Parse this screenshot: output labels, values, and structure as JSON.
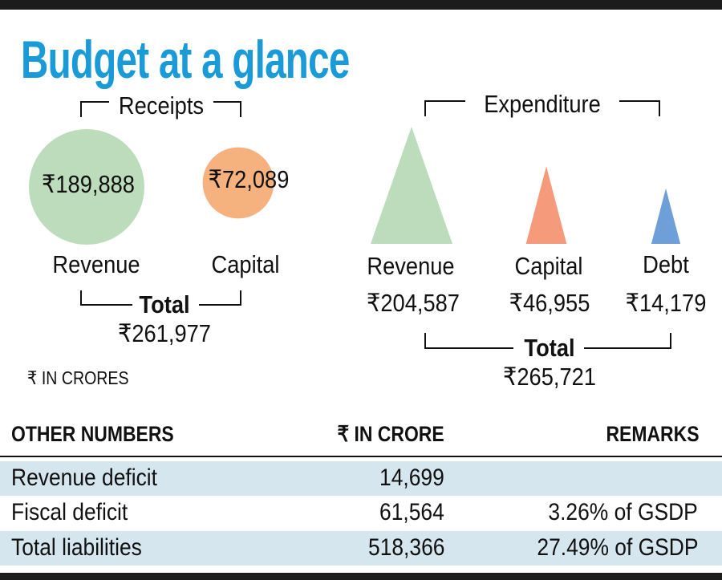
{
  "title": "Budget at a glance",
  "unit_note": "₹ IN CRORES",
  "colors": {
    "title": "#1a9ad6",
    "revenue_receipt": "#bddcbc",
    "capital_receipt": "#f5b27e",
    "revenue_exp": "#bddcbc",
    "capital_exp": "#f59a7a",
    "debt_exp": "#6f9fd8",
    "row_highlight": "#d6e6ef"
  },
  "chart_data": [
    {
      "type": "bubble",
      "title": "Receipts",
      "categories": [
        "Revenue",
        "Capital"
      ],
      "values": [
        189888,
        72089
      ],
      "value_labels": [
        "₹189,888",
        "₹72,089"
      ],
      "total_label": "Total",
      "total": "₹261,977"
    },
    {
      "type": "triangle",
      "title": "Expenditure",
      "categories": [
        "Revenue",
        "Capital",
        "Debt"
      ],
      "values": [
        204587,
        46955,
        14179
      ],
      "value_labels": [
        "₹204,587",
        "₹46,955",
        "₹14,179"
      ],
      "total_label": "Total",
      "total": "₹265,721"
    }
  ],
  "table": {
    "headers": [
      "OTHER NUMBERS",
      "₹ IN CRORE",
      "REMARKS"
    ],
    "rows": [
      {
        "label": "Revenue deficit",
        "value": "14,699",
        "remark": ""
      },
      {
        "label": "Fiscal deficit",
        "value": "61,564",
        "remark": "3.26% of GSDP"
      },
      {
        "label": "Total liabilities",
        "value": "518,366",
        "remark": "27.49% of GSDP"
      }
    ]
  }
}
